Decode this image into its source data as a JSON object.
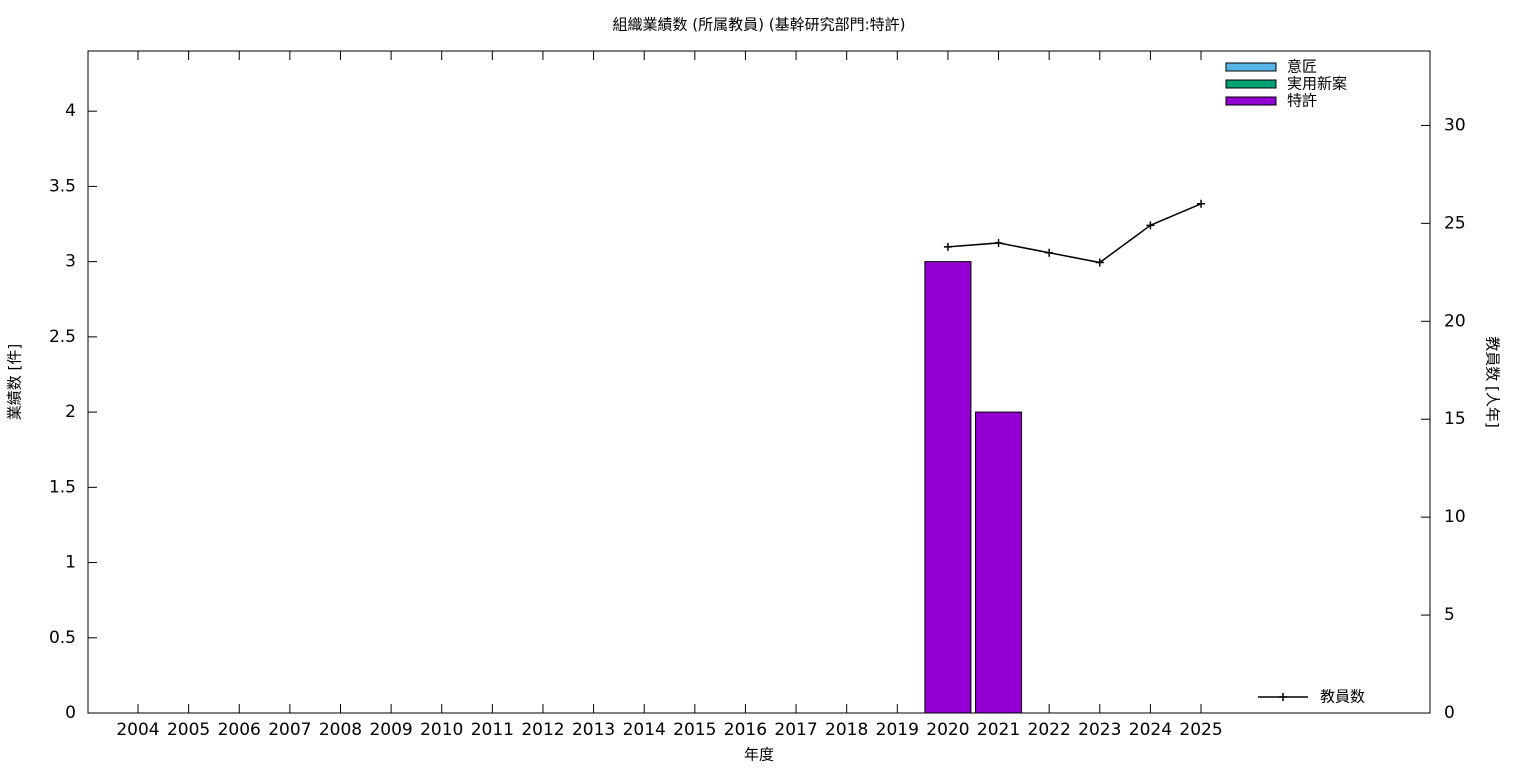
{
  "chart_data": {
    "type": "bar",
    "title": "組織業績数 (所属教員) (基幹研究部門:特許)",
    "x_label": "年度",
    "y_label": "業績数 [件]",
    "y2_label": "教員数 [人年]",
    "categories": [
      "2004",
      "2005",
      "2006",
      "2007",
      "2008",
      "2009",
      "2010",
      "2011",
      "2012",
      "2013",
      "2014",
      "2015",
      "2016",
      "2017",
      "2018",
      "2019",
      "2020",
      "2021",
      "2022",
      "2023",
      "2024",
      "2025"
    ],
    "series": [
      {
        "name": "意匠",
        "color": "#56b4e9",
        "values": [
          0,
          0,
          0,
          0,
          0,
          0,
          0,
          0,
          0,
          0,
          0,
          0,
          0,
          0,
          0,
          0,
          0,
          0,
          0,
          0,
          0,
          0
        ]
      },
      {
        "name": "実用新案",
        "color": "#009e73",
        "values": [
          0,
          0,
          0,
          0,
          0,
          0,
          0,
          0,
          0,
          0,
          0,
          0,
          0,
          0,
          0,
          0,
          0,
          0,
          0,
          0,
          0,
          0
        ]
      },
      {
        "name": "特許",
        "color": "#9400d3",
        "values": [
          0,
          0,
          0,
          0,
          0,
          0,
          0,
          0,
          0,
          0,
          0,
          0,
          0,
          0,
          0,
          0,
          3,
          2,
          0,
          0,
          0,
          0
        ]
      },
      {
        "name": "教員数",
        "color": "#000000",
        "type": "line",
        "axis": "y2",
        "values": [
          null,
          null,
          null,
          null,
          null,
          null,
          null,
          null,
          null,
          null,
          null,
          null,
          null,
          null,
          null,
          null,
          23.8,
          24.0,
          23.5,
          23.0,
          24.9,
          26.0
        ]
      }
    ],
    "stacked": true,
    "ylim": [
      0,
      4.4
    ],
    "yticks": [
      0,
      0.5,
      1,
      1.5,
      2,
      2.5,
      3,
      3.5,
      4
    ],
    "y2lim": [
      0,
      33.8
    ],
    "y2ticks": [
      0,
      5,
      10,
      15,
      20,
      25,
      30
    ],
    "grid": false,
    "legend": "top-right"
  }
}
